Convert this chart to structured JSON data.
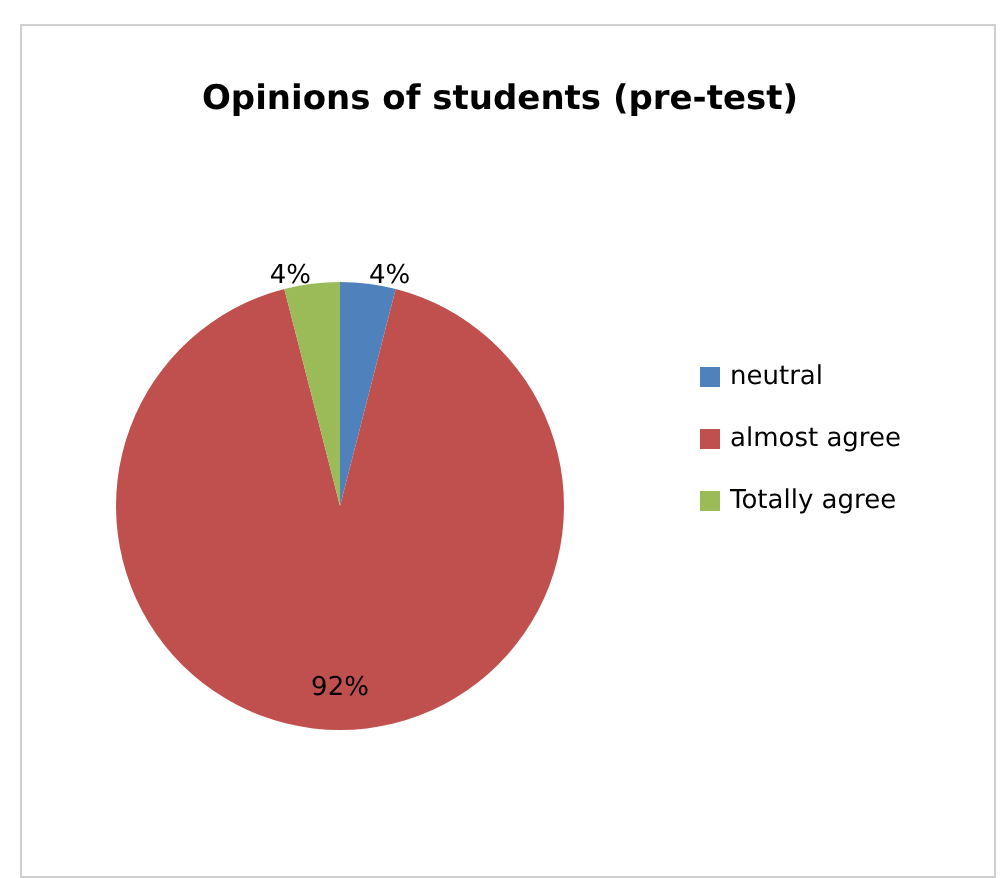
{
  "chart_data": {
    "type": "pie",
    "title": "Opinions of students (pre-test)",
    "categories": [
      "neutral",
      "almost agree",
      "Totally agree"
    ],
    "values": [
      4,
      92,
      4
    ],
    "colors": [
      "#4f81bd",
      "#c0504d",
      "#9bbb59"
    ],
    "value_labels": [
      "4%",
      "92%",
      "4%"
    ],
    "legend": "right"
  }
}
